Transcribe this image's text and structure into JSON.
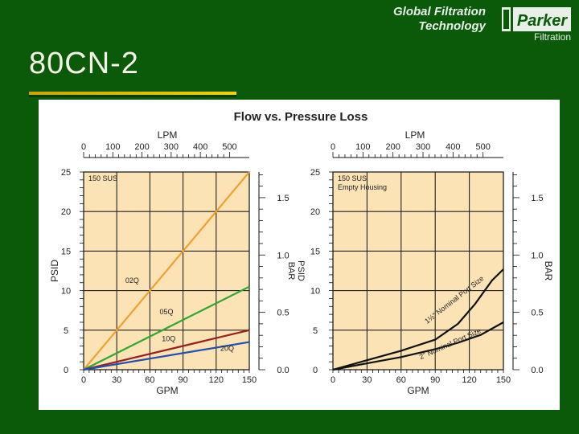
{
  "slide": {
    "title": "80CN-2",
    "brand_line1": "Global Filtration",
    "brand_line2": "Technology",
    "logo_name": "Parker",
    "logo_sub": "Filtration"
  },
  "figure": {
    "title": "Flow vs. Pressure Loss"
  },
  "colors": {
    "background": "#0a5a0a",
    "accent_rule": "#e0c000",
    "plot_fill": "#fbe3b5",
    "c02q": "#f0a030",
    "c05q": "#2ea82e",
    "c10q": "#9a1f1f",
    "c20q": "#2050b0"
  },
  "chart_data": [
    {
      "type": "line",
      "top_axis_label": "LPM",
      "top_ticks": [
        "0",
        "100",
        "200",
        "300",
        "400",
        "500"
      ],
      "xlabel": "GPM",
      "x_ticks": [
        "0",
        "30",
        "60",
        "90",
        "120",
        "150"
      ],
      "ylabel": "PSID",
      "y_ticks": [
        "0",
        "5",
        "10",
        "15",
        "20",
        "25"
      ],
      "right_axis_label": "BAR\nPSID",
      "right_ticks": [
        "0.0",
        "0.5",
        "1.0",
        "1.5"
      ],
      "xlim": [
        0,
        150
      ],
      "ylim": [
        0,
        25
      ],
      "annotation": "150 SUS",
      "grid": true,
      "series": [
        {
          "name": "02Q",
          "color": "#f0a030",
          "points": [
            [
              0,
              0
            ],
            [
              150,
              25
            ]
          ]
        },
        {
          "name": "05Q",
          "color": "#2ea82e",
          "points": [
            [
              0,
              0
            ],
            [
              150,
              10.5
            ]
          ]
        },
        {
          "name": "10Q",
          "color": "#9a1f1f",
          "points": [
            [
              0,
              0
            ],
            [
              150,
              5.0
            ]
          ]
        },
        {
          "name": "20Q",
          "color": "#2050b0",
          "points": [
            [
              0,
              0
            ],
            [
              150,
              3.5
            ]
          ]
        }
      ],
      "series_labels": [
        {
          "text": "02Q",
          "x": 44,
          "y": 11
        },
        {
          "text": "05Q",
          "x": 75,
          "y": 7
        },
        {
          "text": "10Q",
          "x": 77,
          "y": 3.6
        },
        {
          "text": "20Q",
          "x": 130,
          "y": 2.4
        }
      ]
    },
    {
      "type": "line",
      "top_axis_label": "LPM",
      "top_ticks": [
        "0",
        "100",
        "200",
        "300",
        "400",
        "500"
      ],
      "xlabel": "GPM",
      "x_ticks": [
        "0",
        "30",
        "60",
        "90",
        "120",
        "150"
      ],
      "y_ticks": [
        "0",
        "5",
        "10",
        "15",
        "20",
        "25"
      ],
      "right_axis_label": "BAR",
      "right_ticks": [
        "0.0",
        "0.5",
        "1.0",
        "1.5"
      ],
      "xlim": [
        0,
        150
      ],
      "ylim": [
        0,
        25
      ],
      "annotation": "150 SUS\nEmpty Housing",
      "grid": true,
      "series": [
        {
          "name": "1½\" Nominal Port Size",
          "color": "#111111",
          "points": [
            [
              0,
              0
            ],
            [
              30,
              1.2
            ],
            [
              60,
              2.4
            ],
            [
              90,
              3.8
            ],
            [
              110,
              5.8
            ],
            [
              125,
              8.3
            ],
            [
              140,
              11.3
            ],
            [
              150,
              12.7
            ]
          ]
        },
        {
          "name": "2\" Nominal Port Size",
          "color": "#111111",
          "points": [
            [
              0,
              0
            ],
            [
              30,
              0.8
            ],
            [
              60,
              1.6
            ],
            [
              90,
              2.6
            ],
            [
              110,
              3.4
            ],
            [
              130,
              4.4
            ],
            [
              150,
              6.0
            ]
          ]
        }
      ],
      "series_labels": [
        {
          "text": "1½\" Nominal Port Size",
          "x": 108,
          "y": 8.6,
          "angle": -38
        },
        {
          "text": "2\" Nominal Port Size",
          "x": 104,
          "y": 3.0,
          "angle": -24
        }
      ]
    }
  ]
}
